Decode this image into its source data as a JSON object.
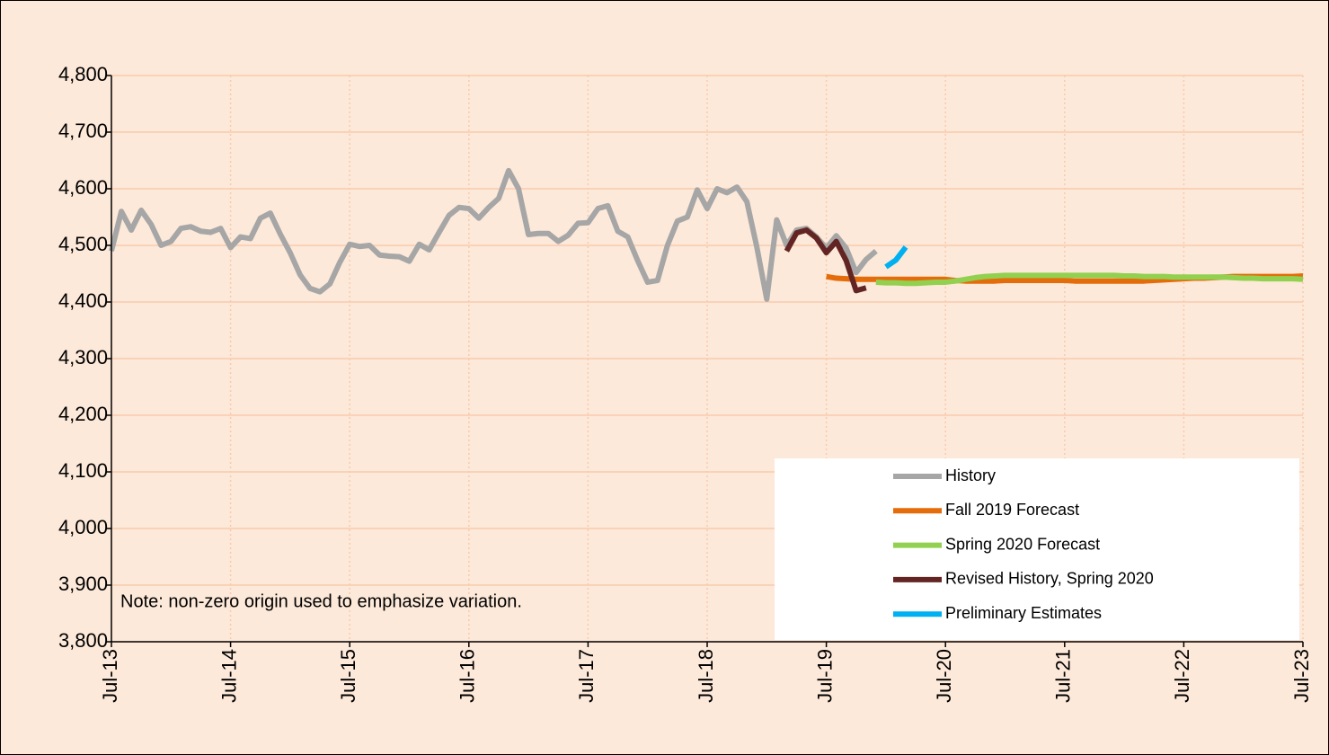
{
  "chart_data": {
    "type": "line",
    "annotation": "Note: non-zero origin used to emphasize variation.",
    "categories": [
      "Jul-13",
      null,
      null,
      null,
      null,
      null,
      null,
      null,
      null,
      null,
      null,
      null,
      "Jul-14",
      null,
      null,
      null,
      null,
      null,
      null,
      null,
      null,
      null,
      null,
      null,
      "Jul-15",
      null,
      null,
      null,
      null,
      null,
      null,
      null,
      null,
      null,
      null,
      null,
      "Jul-16",
      null,
      null,
      null,
      null,
      null,
      null,
      null,
      null,
      null,
      null,
      null,
      "Jul-17",
      null,
      null,
      null,
      null,
      null,
      null,
      null,
      null,
      null,
      null,
      null,
      "Jul-18",
      null,
      null,
      null,
      null,
      null,
      null,
      null,
      null,
      null,
      null,
      null,
      "Jul-19",
      null,
      null,
      null,
      null,
      null,
      null,
      null,
      null,
      null,
      null,
      null,
      "Jul-20",
      null,
      null,
      null,
      null,
      null,
      null,
      null,
      null,
      null,
      null,
      null,
      "Jul-21",
      null,
      null,
      null,
      null,
      null,
      null,
      null,
      null,
      null,
      null,
      null,
      "Jul-22",
      null,
      null,
      null,
      null,
      null,
      null,
      null,
      null,
      null,
      null,
      null,
      "Jul-23"
    ],
    "series": [
      {
        "name": "History",
        "color": "#a6a6a6",
        "values": [
          4490,
          4560,
          4527,
          4562,
          4537,
          4500,
          4507,
          4530,
          4533,
          4525,
          4523,
          4530,
          4496,
          4515,
          4512,
          4548,
          4557,
          4520,
          4487,
          4448,
          4424,
          4418,
          4432,
          4470,
          4502,
          4498,
          4500,
          4483,
          4481,
          4480,
          4472,
          4502,
          4492,
          4523,
          4553,
          4567,
          4565,
          4548,
          4567,
          4583,
          4632,
          4600,
          4519,
          4521,
          4521,
          4507,
          4518,
          4539,
          4540,
          4565,
          4570,
          4525,
          4515,
          4473,
          4435,
          4438,
          4500,
          4543,
          4550,
          4598,
          4565,
          4600,
          4593,
          4603,
          4577,
          4497,
          4405,
          4545,
          4500,
          4527,
          4530,
          4515,
          4495,
          4517,
          4495,
          4452,
          4475,
          4490,
          null,
          null,
          null,
          null,
          null,
          null,
          null,
          null,
          null,
          null,
          null,
          null,
          null,
          null,
          null,
          null,
          null,
          null,
          null,
          null,
          null,
          null,
          null,
          null,
          null,
          null,
          null,
          null,
          null,
          null,
          null,
          null,
          null,
          null,
          null,
          null,
          null,
          null,
          null,
          null,
          null,
          null,
          null
        ]
      },
      {
        "name": "Fall 2019 Forecast",
        "color": "#e46c0a",
        "values": [
          null,
          null,
          null,
          null,
          null,
          null,
          null,
          null,
          null,
          null,
          null,
          null,
          null,
          null,
          null,
          null,
          null,
          null,
          null,
          null,
          null,
          null,
          null,
          null,
          null,
          null,
          null,
          null,
          null,
          null,
          null,
          null,
          null,
          null,
          null,
          null,
          null,
          null,
          null,
          null,
          null,
          null,
          null,
          null,
          null,
          null,
          null,
          null,
          null,
          null,
          null,
          null,
          null,
          null,
          null,
          null,
          null,
          null,
          null,
          null,
          null,
          null,
          null,
          null,
          null,
          null,
          null,
          null,
          null,
          null,
          null,
          null,
          4445,
          4442,
          4441,
          4440,
          4440,
          4440,
          4440,
          4440,
          4440,
          4440,
          4440,
          4440,
          4440,
          4438,
          4437,
          4437,
          4437,
          4437,
          4438,
          4438,
          4438,
          4438,
          4438,
          4438,
          4438,
          4437,
          4437,
          4437,
          4437,
          4437,
          4437,
          4437,
          4437,
          4438,
          4439,
          4440,
          4441,
          4442,
          4442,
          4443,
          4444,
          4445,
          4445,
          4445,
          4445,
          4445,
          4445,
          4445,
          4446
        ]
      },
      {
        "name": "Spring 2020 Forecast",
        "color": "#92d050",
        "values": [
          null,
          null,
          null,
          null,
          null,
          null,
          null,
          null,
          null,
          null,
          null,
          null,
          null,
          null,
          null,
          null,
          null,
          null,
          null,
          null,
          null,
          null,
          null,
          null,
          null,
          null,
          null,
          null,
          null,
          null,
          null,
          null,
          null,
          null,
          null,
          null,
          null,
          null,
          null,
          null,
          null,
          null,
          null,
          null,
          null,
          null,
          null,
          null,
          null,
          null,
          null,
          null,
          null,
          null,
          null,
          null,
          null,
          null,
          null,
          null,
          null,
          null,
          null,
          null,
          null,
          null,
          null,
          null,
          null,
          null,
          null,
          null,
          null,
          null,
          null,
          null,
          null,
          4435,
          4434,
          4434,
          4433,
          4433,
          4434,
          4435,
          4435,
          4437,
          4440,
          4443,
          4445,
          4446,
          4447,
          4447,
          4447,
          4447,
          4447,
          4447,
          4447,
          4447,
          4447,
          4447,
          4447,
          4447,
          4446,
          4446,
          4445,
          4445,
          4445,
          4444,
          4444,
          4444,
          4444,
          4444,
          4444,
          4443,
          4442,
          4442,
          4441,
          4441,
          4441,
          4441,
          4440
        ]
      },
      {
        "name": "Revised History, Spring 2020",
        "color": "#632523",
        "values": [
          null,
          null,
          null,
          null,
          null,
          null,
          null,
          null,
          null,
          null,
          null,
          null,
          null,
          null,
          null,
          null,
          null,
          null,
          null,
          null,
          null,
          null,
          null,
          null,
          null,
          null,
          null,
          null,
          null,
          null,
          null,
          null,
          null,
          null,
          null,
          null,
          null,
          null,
          null,
          null,
          null,
          null,
          null,
          null,
          null,
          null,
          null,
          null,
          null,
          null,
          null,
          null,
          null,
          null,
          null,
          null,
          null,
          null,
          null,
          null,
          null,
          null,
          null,
          null,
          null,
          null,
          null,
          null,
          4490,
          4522,
          4527,
          4513,
          4487,
          4507,
          4473,
          4420,
          4425,
          null,
          null,
          null,
          null,
          null,
          null,
          null,
          null,
          null,
          null,
          null,
          null,
          null,
          null,
          null,
          null,
          null,
          null,
          null,
          null,
          null,
          null,
          null,
          null,
          null,
          null,
          null,
          null,
          null,
          null,
          null,
          null,
          null,
          null,
          null,
          null,
          null,
          null,
          null,
          null,
          null,
          null,
          null,
          null
        ]
      },
      {
        "name": "Preliminary Estimates",
        "color": "#00b0f0",
        "values": [
          null,
          null,
          null,
          null,
          null,
          null,
          null,
          null,
          null,
          null,
          null,
          null,
          null,
          null,
          null,
          null,
          null,
          null,
          null,
          null,
          null,
          null,
          null,
          null,
          null,
          null,
          null,
          null,
          null,
          null,
          null,
          null,
          null,
          null,
          null,
          null,
          null,
          null,
          null,
          null,
          null,
          null,
          null,
          null,
          null,
          null,
          null,
          null,
          null,
          null,
          null,
          null,
          null,
          null,
          null,
          null,
          null,
          null,
          null,
          null,
          null,
          null,
          null,
          null,
          null,
          null,
          null,
          null,
          null,
          null,
          null,
          null,
          null,
          null,
          null,
          null,
          null,
          null,
          4462,
          4474,
          4497,
          null,
          null,
          null,
          null,
          null,
          null,
          null,
          null,
          null,
          null,
          null,
          null,
          null,
          null,
          null,
          null,
          null,
          null,
          null,
          null,
          null,
          null,
          null,
          null,
          null,
          null,
          null,
          null,
          null,
          null,
          null,
          null,
          null,
          null,
          null,
          null,
          null,
          null,
          null,
          null
        ]
      }
    ],
    "ylim": [
      3800,
      4800
    ],
    "yticks": [
      {
        "value": 3800,
        "label": "3,800"
      },
      {
        "value": 3900,
        "label": "3,900"
      },
      {
        "value": 4000,
        "label": "4,000"
      },
      {
        "value": 4100,
        "label": "4,100"
      },
      {
        "value": 4200,
        "label": "4,200"
      },
      {
        "value": 4300,
        "label": "4,300"
      },
      {
        "value": 4400,
        "label": "4,400"
      },
      {
        "value": 4500,
        "label": "4,500"
      },
      {
        "value": 4600,
        "label": "4,600"
      },
      {
        "value": 4700,
        "label": "4,700"
      },
      {
        "value": 4800,
        "label": "4,800"
      }
    ],
    "grid": true,
    "legend": "bottom-right"
  }
}
